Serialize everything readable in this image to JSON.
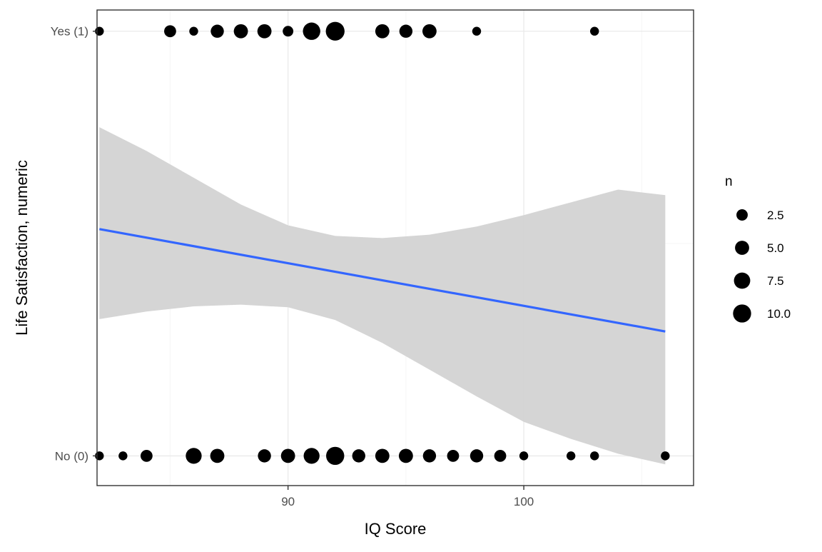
{
  "chart_data": {
    "type": "scatter",
    "xlabel": "IQ Score",
    "ylabel": "Life Satisfaction, numeric",
    "xlim": [
      81.9,
      107.2
    ],
    "ylim": [
      -0.07,
      1.05
    ],
    "x_ticks": [
      {
        "value": 90,
        "label": "90"
      },
      {
        "value": 100,
        "label": "100"
      }
    ],
    "x_minor_ticks": [
      85,
      95,
      105
    ],
    "y_ticks": [
      {
        "value": 0,
        "label": "No (0)"
      },
      {
        "value": 1,
        "label": "Yes (1)"
      }
    ],
    "y_minor_ticks": [
      0.5
    ],
    "grid": true,
    "legend": {
      "title": "n",
      "position": "right",
      "entries": [
        {
          "value": 2.5,
          "label": "2.5"
        },
        {
          "value": 5.0,
          "label": "5.0"
        },
        {
          "value": 7.5,
          "label": "7.5"
        },
        {
          "value": 10.0,
          "label": "10.0"
        }
      ]
    },
    "series": [
      {
        "y": 1,
        "points": [
          {
            "x": 82,
            "n": 1
          },
          {
            "x": 85,
            "n": 3
          },
          {
            "x": 86,
            "n": 1
          },
          {
            "x": 87,
            "n": 4
          },
          {
            "x": 88,
            "n": 5
          },
          {
            "x": 89,
            "n": 5
          },
          {
            "x": 90,
            "n": 2
          },
          {
            "x": 91,
            "n": 9
          },
          {
            "x": 92,
            "n": 11
          },
          {
            "x": 94,
            "n": 5
          },
          {
            "x": 95,
            "n": 4
          },
          {
            "x": 96,
            "n": 5
          },
          {
            "x": 98,
            "n": 1
          },
          {
            "x": 103,
            "n": 1
          }
        ]
      },
      {
        "y": 0,
        "points": [
          {
            "x": 82,
            "n": 1
          },
          {
            "x": 83,
            "n": 1
          },
          {
            "x": 84,
            "n": 3
          },
          {
            "x": 86,
            "n": 7
          },
          {
            "x": 87,
            "n": 5
          },
          {
            "x": 89,
            "n": 4
          },
          {
            "x": 90,
            "n": 5
          },
          {
            "x": 91,
            "n": 7
          },
          {
            "x": 92,
            "n": 10
          },
          {
            "x": 93,
            "n": 4
          },
          {
            "x": 94,
            "n": 5
          },
          {
            "x": 95,
            "n": 5
          },
          {
            "x": 96,
            "n": 4
          },
          {
            "x": 97,
            "n": 3
          },
          {
            "x": 98,
            "n": 4
          },
          {
            "x": 99,
            "n": 3
          },
          {
            "x": 100,
            "n": 1
          },
          {
            "x": 102,
            "n": 1
          },
          {
            "x": 103,
            "n": 1
          },
          {
            "x": 106,
            "n": 1
          }
        ]
      }
    ],
    "fit_line": {
      "method": "linear",
      "color": "#3366FF",
      "points": [
        {
          "x": 82,
          "y": 0.534
        },
        {
          "x": 106,
          "y": 0.293
        }
      ]
    },
    "confidence_band": {
      "color": "#D3D3D3",
      "upper": [
        {
          "x": 82,
          "y": 0.774
        },
        {
          "x": 84,
          "y": 0.718
        },
        {
          "x": 86,
          "y": 0.655
        },
        {
          "x": 88,
          "y": 0.592
        },
        {
          "x": 90,
          "y": 0.543
        },
        {
          "x": 92,
          "y": 0.518
        },
        {
          "x": 94,
          "y": 0.513
        },
        {
          "x": 96,
          "y": 0.521
        },
        {
          "x": 98,
          "y": 0.54
        },
        {
          "x": 100,
          "y": 0.567
        },
        {
          "x": 102,
          "y": 0.597
        },
        {
          "x": 104,
          "y": 0.627
        },
        {
          "x": 106,
          "y": 0.614
        }
      ],
      "lower": [
        {
          "x": 82,
          "y": 0.322
        },
        {
          "x": 84,
          "y": 0.34
        },
        {
          "x": 86,
          "y": 0.352
        },
        {
          "x": 88,
          "y": 0.356
        },
        {
          "x": 90,
          "y": 0.35
        },
        {
          "x": 92,
          "y": 0.32
        },
        {
          "x": 94,
          "y": 0.266
        },
        {
          "x": 96,
          "y": 0.203
        },
        {
          "x": 98,
          "y": 0.14
        },
        {
          "x": 100,
          "y": 0.08
        },
        {
          "x": 102,
          "y": 0.04
        },
        {
          "x": 104,
          "y": 0.005
        },
        {
          "x": 106,
          "y": -0.02
        }
      ]
    },
    "colors": {
      "points": "#000000",
      "panel_border": "#333333",
      "grid_major": "#EBEBEB",
      "grid_minor": "#F5F5F5"
    }
  }
}
